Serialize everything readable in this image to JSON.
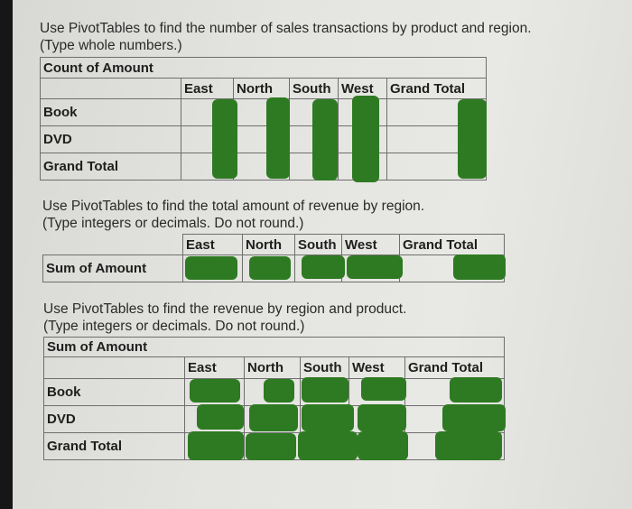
{
  "q1": {
    "line1": "Use PivotTables to find the number of sales transactions by product and region.",
    "line2": "(Type whole numbers.)",
    "table_title": "Count of Amount",
    "columns": [
      "East",
      "North",
      "South",
      "West",
      "Grand Total"
    ],
    "rows": [
      "Book",
      "DVD",
      "Grand Total"
    ]
  },
  "q2": {
    "line1": "Use PivotTables to find the total amount of revenue by region.",
    "line2": "(Type integers or decimals. Do not round.)",
    "columns": [
      "East",
      "North",
      "South",
      "West",
      "Grand Total"
    ],
    "row_label": "Sum of Amount"
  },
  "q3": {
    "line1": "Use PivotTables to find the revenue by region and product.",
    "line2": "(Type integers or decimals. Do not round.)",
    "table_title": "Sum of Amount",
    "columns": [
      "East",
      "North",
      "South",
      "West",
      "Grand Total"
    ],
    "rows": [
      "Book",
      "DVD",
      "Grand Total"
    ]
  },
  "colors": {
    "redaction": "#2e7a22",
    "paper": "#e4e4e0",
    "background": "#161616"
  }
}
